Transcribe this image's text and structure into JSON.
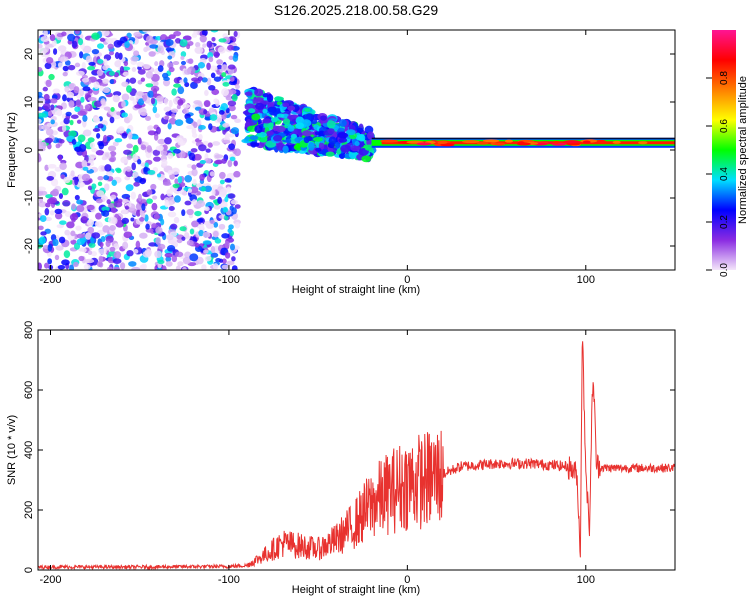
{
  "title": "S126.2025.218.00.58.G29",
  "chart_data": [
    {
      "type": "heatmap",
      "xlabel": "Height of straight line (km)",
      "ylabel": "Frequency (Hz)",
      "xlim": [
        -207,
        150
      ],
      "ylim": [
        -25,
        25
      ],
      "xticks": [
        -200,
        -100,
        0,
        100
      ],
      "yticks": [
        -20,
        -10,
        0,
        10,
        20
      ],
      "colorbar": {
        "label": "Normalized spectral amplitude",
        "range": [
          0,
          1
        ],
        "ticks": [
          "0.0",
          "0.2",
          "0.4",
          "0.6",
          "0.8"
        ],
        "colormap": [
          "#f4e6fa",
          "#8a2be2",
          "#0000ff",
          "#00e0ff",
          "#00ff00",
          "#ffff00",
          "#ff8000",
          "#ff0000",
          "#ff1493"
        ]
      },
      "regions": [
        {
          "x_range": [
            -207,
            -95
          ],
          "freq_range": [
            -25,
            25
          ],
          "amplitude": 0.1,
          "description": "noise"
        },
        {
          "x_range": [
            -90,
            -20
          ],
          "freq_range": [
            -5,
            12
          ],
          "amplitude": 0.25
        },
        {
          "x_range": [
            -20,
            150
          ],
          "freq_center": 1.5,
          "amplitude": 0.85
        }
      ],
      "grid": false
    },
    {
      "type": "line",
      "xlabel": "Height of straight line (km)",
      "ylabel": "SNR (10 * v/v)",
      "xlim": [
        -207,
        150
      ],
      "ylim": [
        0,
        800
      ],
      "xticks": [
        -200,
        -100,
        0,
        100
      ],
      "yticks": [
        0,
        200,
        400,
        600,
        800
      ],
      "color": "#e8322f",
      "series": [
        {
          "x": [
            -207,
            -150,
            -100,
            -90,
            -80,
            -70,
            -60,
            -50,
            -40,
            -30,
            -20,
            -10,
            0,
            10,
            20,
            30,
            40,
            50,
            60,
            70,
            80,
            90,
            95,
            97,
            98,
            100,
            102,
            104,
            106,
            110,
            120,
            130,
            140,
            150
          ],
          "values": [
            10,
            10,
            12,
            15,
            50,
            90,
            80,
            70,
            100,
            150,
            220,
            260,
            290,
            300,
            320,
            345,
            350,
            355,
            355,
            355,
            350,
            345,
            320,
            50,
            800,
            350,
            120,
            670,
            350,
            340,
            340,
            340,
            340,
            340
          ]
        }
      ],
      "grid": false
    }
  ]
}
